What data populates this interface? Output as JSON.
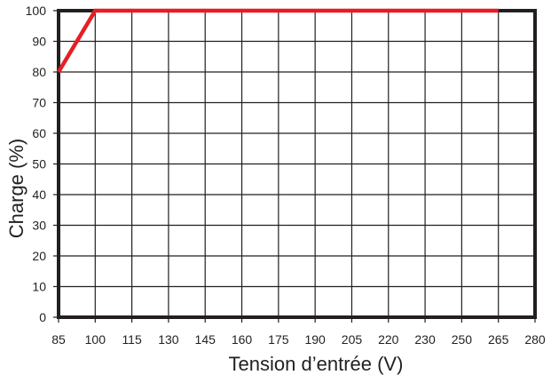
{
  "chart_data": {
    "type": "line",
    "xlabel": "Tension d’entrée (V)",
    "ylabel": "Charge (%)",
    "x_ticks": [
      "85",
      "100",
      "115",
      "130",
      "145",
      "160",
      "175",
      "190",
      "205",
      "220",
      "230",
      "250",
      "265",
      "280"
    ],
    "y_ticks": [
      "0",
      "10",
      "20",
      "30",
      "40",
      "50",
      "60",
      "70",
      "80",
      "90",
      "100"
    ],
    "ylim": [
      0,
      100
    ],
    "grid": true,
    "series": [
      {
        "x": [
          85,
          100,
          265
        ],
        "y": [
          80,
          100,
          100
        ],
        "color": "#e51e25"
      }
    ],
    "colors": {
      "frame": "#231f20",
      "grid": "#231f20",
      "line": "#e51e25"
    }
  }
}
